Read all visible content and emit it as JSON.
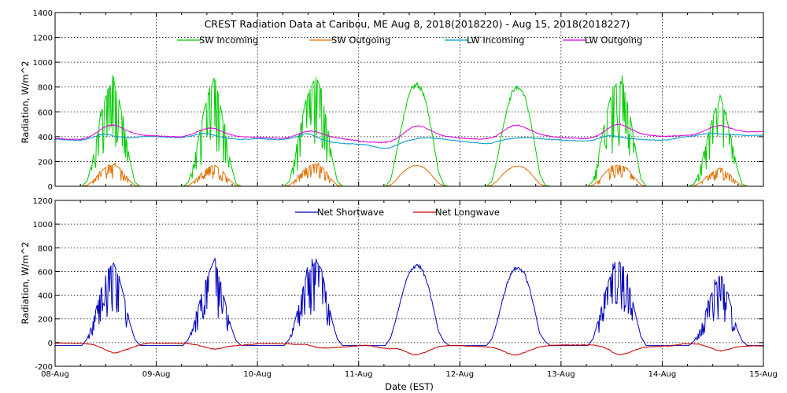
{
  "chart_data": [
    {
      "type": "line",
      "title": "CREST Radiation Data at Caribou, ME   Aug  8, 2018(2018220) - Aug 15, 2018(2018227)",
      "ylabel": "Radiation, W/m^2",
      "xlabel": "",
      "ylim": [
        0,
        1400
      ],
      "yticks": [
        0,
        200,
        400,
        600,
        800,
        1000,
        1200,
        1400
      ],
      "xlim": [
        "2018-08-08",
        "2018-08-15"
      ],
      "grid": true,
      "legend": "top",
      "days": [
        "2018-08-08",
        "2018-08-09",
        "2018-08-10",
        "2018-08-11",
        "2018-08-12",
        "2018-08-13",
        "2018-08-14"
      ],
      "series": [
        {
          "name": "SW Incoming",
          "color": "#00cc00",
          "daily_peak": [
            840,
            890,
            880,
            835,
            810,
            860,
            720
          ],
          "hourly_values": [
            [
              0,
              0,
              0,
              0,
              0,
              0,
              40,
              200,
              430,
              640,
              790,
              840,
              700,
              480,
              220,
              30,
              0,
              0,
              0,
              0
            ],
            [
              0,
              0,
              0,
              0,
              0,
              0,
              30,
              180,
              400,
              620,
              760,
              890,
              650,
              420,
              180,
              20,
              0,
              0,
              0,
              0
            ],
            [
              0,
              0,
              0,
              0,
              0,
              0,
              40,
              220,
              460,
              680,
              800,
              880,
              780,
              520,
              240,
              40,
              0,
              0,
              0,
              0
            ],
            [
              0,
              0,
              0,
              0,
              0,
              0,
              50,
              250,
              480,
              680,
              800,
              835,
              780,
              620,
              380,
              120,
              10,
              0,
              0,
              0
            ],
            [
              0,
              0,
              0,
              0,
              0,
              0,
              40,
              220,
              460,
              660,
              790,
              810,
              760,
              600,
              360,
              100,
              10,
              0,
              0,
              0
            ],
            [
              0,
              0,
              0,
              0,
              0,
              0,
              40,
              230,
              470,
              670,
              800,
              860,
              760,
              560,
              300,
              60,
              0,
              0,
              0,
              0
            ],
            [
              0,
              0,
              0,
              0,
              0,
              0,
              20,
              120,
              300,
              480,
              620,
              720,
              560,
              380,
              160,
              20,
              0,
              0,
              0,
              0
            ]
          ]
        },
        {
          "name": "SW Outgoing",
          "color": "#e07000",
          "daily_peak": [
            175,
            170,
            180,
            170,
            165,
            175,
            150
          ],
          "hourly_values": [
            [
              0,
              0,
              0,
              0,
              0,
              0,
              8,
              40,
              90,
              135,
              165,
              175,
              150,
              100,
              45,
              6,
              0,
              0,
              0,
              0
            ],
            [
              0,
              0,
              0,
              0,
              0,
              0,
              6,
              35,
              85,
              130,
              160,
              170,
              140,
              90,
              40,
              5,
              0,
              0,
              0,
              0
            ],
            [
              0,
              0,
              0,
              0,
              0,
              0,
              8,
              45,
              95,
              140,
              170,
              180,
              160,
              110,
              50,
              8,
              0,
              0,
              0,
              0
            ],
            [
              0,
              0,
              0,
              0,
              0,
              0,
              10,
              50,
              100,
              140,
              165,
              170,
              160,
              125,
              75,
              25,
              2,
              0,
              0,
              0
            ],
            [
              0,
              0,
              0,
              0,
              0,
              0,
              8,
              45,
              95,
              135,
              160,
              165,
              155,
              120,
              70,
              20,
              2,
              0,
              0,
              0
            ],
            [
              0,
              0,
              0,
              0,
              0,
              0,
              8,
              45,
              95,
              140,
              165,
              175,
              155,
              115,
              60,
              12,
              0,
              0,
              0,
              0
            ],
            [
              0,
              0,
              0,
              0,
              0,
              0,
              4,
              25,
              60,
              100,
              130,
              150,
              115,
              80,
              35,
              4,
              0,
              0,
              0,
              0
            ]
          ]
        },
        {
          "name": "LW Incoming",
          "color": "#0099cc",
          "hourly_values": [
            [
              380,
              378,
              375,
              372,
              370,
              372,
              380,
              395,
              410,
              420,
              418,
              405,
              400,
              395,
              390,
              392,
              398,
              402,
              404,
              402
            ],
            [
              400,
              398,
              396,
              394,
              392,
              394,
              400,
              410,
              420,
              425,
              420,
              410,
              400,
              392,
              385,
              380,
              378,
              380,
              382,
              384
            ],
            [
              385,
              383,
              380,
              378,
              376,
              378,
              385,
              395,
              410,
              425,
              420,
              400,
              380,
              365,
              355,
              350,
              345,
              343,
              342,
              340
            ],
            [
              338,
              336,
              330,
              320,
              310,
              305,
              310,
              330,
              350,
              365,
              375,
              385,
              390,
              390,
              388,
              385,
              380,
              375,
              370,
              365
            ],
            [
              362,
              358,
              354,
              350,
              346,
              344,
              348,
              360,
              372,
              380,
              385,
              390,
              392,
              390,
              388,
              384,
              380,
              378,
              376,
              374
            ],
            [
              372,
              370,
              368,
              366,
              364,
              366,
              372,
              385,
              400,
              410,
              405,
              398,
              390,
              384,
              380,
              378,
              376,
              374,
              372,
              370
            ],
            [
              372,
              374,
              380,
              390,
              398,
              402,
              408,
              415,
              422,
              428,
              425,
              420,
              418,
              416,
              414,
              412,
              410,
              410,
              412,
              414
            ]
          ]
        },
        {
          "name": "LW Outgoing",
          "color": "#dd00dd",
          "hourly_values": [
            [
              385,
              383,
              381,
              379,
              378,
              380,
              390,
              410,
              440,
              470,
              490,
              495,
              480,
              460,
              440,
              425,
              415,
              410,
              408,
              406
            ],
            [
              406,
              404,
              402,
              400,
              398,
              400,
              410,
              425,
              445,
              460,
              470,
              465,
              450,
              430,
              415,
              405,
              400,
              398,
              396,
              395
            ],
            [
              394,
              392,
              390,
              388,
              386,
              388,
              395,
              410,
              425,
              440,
              445,
              440,
              425,
              410,
              398,
              390,
              384,
              378,
              372,
              368
            ],
            [
              362,
              358,
              356,
              354,
              352,
              354,
              362,
              380,
              410,
              445,
              475,
              488,
              480,
              460,
              440,
              420,
              408,
              400,
              395,
              392
            ],
            [
              388,
              386,
              384,
              382,
              380,
              382,
              390,
              410,
              440,
              470,
              490,
              492,
              478,
              458,
              438,
              420,
              410,
              402,
              398,
              395
            ],
            [
              392,
              390,
              388,
              386,
              384,
              386,
              394,
              412,
              440,
              470,
              495,
              500,
              485,
              465,
              442,
              425,
              415,
              410,
              406,
              404
            ],
            [
              402,
              404,
              406,
              408,
              410,
              412,
              418,
              430,
              450,
              470,
              485,
              490,
              480,
              465,
              452,
              445,
              440,
              438,
              440,
              442
            ]
          ]
        }
      ]
    },
    {
      "type": "line",
      "title": "",
      "ylabel": "Radiation, W/m^2",
      "xlabel": "Date (EST)",
      "ylim": [
        -200,
        1200
      ],
      "yticks": [
        -200,
        0,
        200,
        400,
        600,
        800,
        1000,
        1200
      ],
      "xlim": [
        "2018-08-08",
        "2018-08-15"
      ],
      "xticks": [
        "08-Aug",
        "09-Aug",
        "10-Aug",
        "11-Aug",
        "12-Aug",
        "13-Aug",
        "14-Aug",
        "15-Aug"
      ],
      "grid": true,
      "legend": "top",
      "series": [
        {
          "name": "Net Shortwave",
          "color": "#0000bb",
          "daily_peak": [
            670,
            710,
            690,
            670,
            640,
            680,
            580
          ],
          "hourly_values": [
            [
              -25,
              -25,
              -25,
              -25,
              -25,
              -25,
              30,
              160,
              340,
              510,
              620,
              670,
              550,
              380,
              175,
              25,
              -25,
              -25,
              -25,
              -25
            ],
            [
              -25,
              -25,
              -25,
              -25,
              -25,
              -25,
              25,
              145,
              320,
              490,
              600,
              710,
              510,
              330,
              140,
              15,
              -25,
              -25,
              -25,
              -25
            ],
            [
              -25,
              -25,
              -25,
              -25,
              -25,
              -25,
              30,
              175,
              365,
              540,
              630,
              690,
              620,
              410,
              190,
              30,
              -25,
              -25,
              -25,
              -25
            ],
            [
              -25,
              -25,
              -25,
              -25,
              -25,
              -25,
              40,
              200,
              380,
              540,
              635,
              670,
              620,
              495,
              305,
              95,
              10,
              -25,
              -25,
              -25
            ],
            [
              -25,
              -25,
              -25,
              -25,
              -25,
              -25,
              30,
              175,
              365,
              525,
              625,
              640,
              605,
              480,
              290,
              80,
              10,
              -25,
              -25,
              -25
            ],
            [
              -25,
              -25,
              -25,
              -25,
              -25,
              -25,
              30,
              185,
              375,
              530,
              635,
              680,
              605,
              445,
              240,
              50,
              -25,
              -25,
              -25,
              -25
            ],
            [
              -25,
              -25,
              -25,
              -25,
              -25,
              -25,
              15,
              95,
              240,
              380,
              490,
              580,
              445,
              300,
              125,
              15,
              -25,
              -25,
              -25,
              -25
            ]
          ]
        },
        {
          "name": "Net Longwave",
          "color": "#cc0000",
          "hourly_values": [
            [
              -5,
              -5,
              -6,
              -7,
              -8,
              -8,
              -10,
              -15,
              -30,
              -50,
              -72,
              -90,
              -80,
              -65,
              -50,
              -33,
              -17,
              -8,
              -4,
              -4
            ],
            [
              -6,
              -6,
              -6,
              -6,
              -6,
              -6,
              -10,
              -15,
              -25,
              -35,
              -50,
              -55,
              -50,
              -38,
              -30,
              -25,
              -22,
              -18,
              -14,
              -11
            ],
            [
              -9,
              -9,
              -10,
              -10,
              -10,
              -10,
              -10,
              -15,
              -15,
              -15,
              -25,
              -40,
              -45,
              -45,
              -43,
              -40,
              -39,
              -35,
              -30,
              -28
            ],
            [
              -24,
              -22,
              -26,
              -34,
              -42,
              -49,
              -52,
              -50,
              -60,
              -80,
              -100,
              -103,
              -90,
              -70,
              -52,
              -35,
              -28,
              -25,
              -25,
              -27
            ],
            [
              -26,
              -28,
              -30,
              -32,
              -34,
              -38,
              -42,
              -50,
              -68,
              -90,
              -105,
              -102,
              -86,
              -68,
              -50,
              -36,
              -30,
              -24,
              -22,
              -21
            ],
            [
              -20,
              -20,
              -20,
              -20,
              -20,
              -20,
              -22,
              -27,
              -40,
              -60,
              -90,
              -102,
              -95,
              -81,
              -62,
              -47,
              -39,
              -36,
              -34,
              -34
            ],
            [
              -30,
              -30,
              -26,
              -18,
              -12,
              -10,
              -10,
              -15,
              -28,
              -42,
              -60,
              -70,
              -62,
              -49,
              -38,
              -33,
              -30,
              -28,
              -28,
              -28
            ]
          ]
        }
      ]
    }
  ]
}
